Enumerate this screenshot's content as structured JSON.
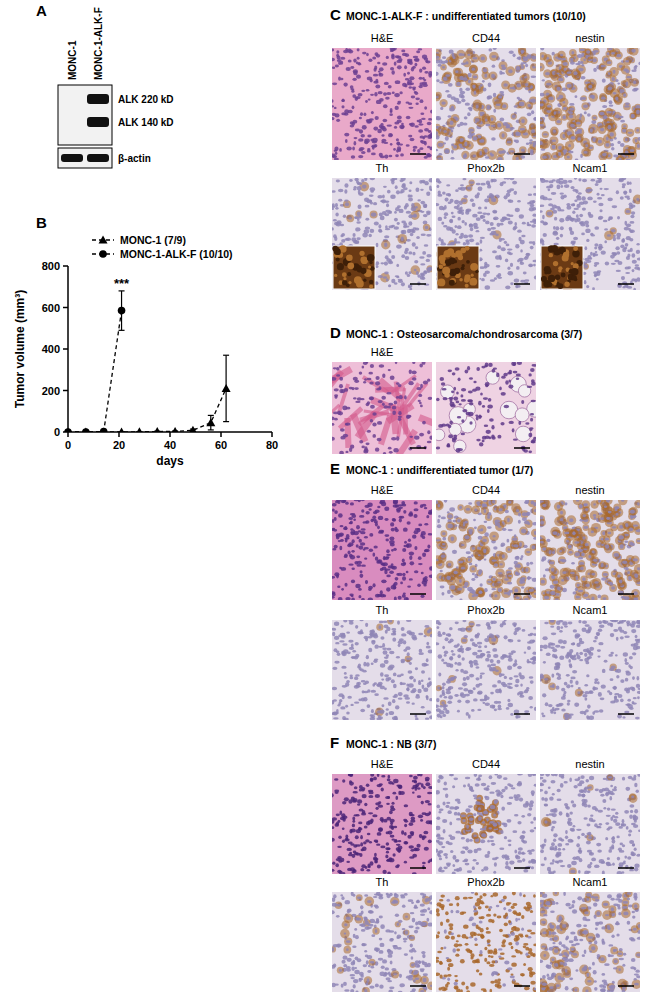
{
  "panels": {
    "A": {
      "label": "A",
      "lanes": [
        "MONC-1",
        "MONC-1-ALK-F"
      ],
      "bands": [
        {
          "label": "ALK 220 kD",
          "signal": [
            0,
            1
          ]
        },
        {
          "label": "ALK 140 kD",
          "signal": [
            0,
            1
          ]
        }
      ],
      "loading_control": {
        "label": "β-actin",
        "signal": [
          1,
          1
        ]
      }
    },
    "B": {
      "label": "B"
    },
    "C": {
      "label": "C",
      "title": "MONC-1-ALK-F : undifferentiated tumors (10/10)",
      "rows": [
        [
          "H&E",
          "CD44",
          "nestin"
        ],
        [
          "Th",
          "Phox2b",
          "Ncam1"
        ]
      ]
    },
    "D": {
      "label": "D",
      "title": "MONC-1 : Osteosarcoma/chondrosarcoma (3/7)",
      "rows": [
        [
          "H&E"
        ]
      ]
    },
    "E": {
      "label": "E",
      "title": "MONC-1 : undifferentiated tumor (1/7)",
      "rows": [
        [
          "H&E",
          "CD44",
          "nestin"
        ],
        [
          "Th",
          "Phox2b",
          "Ncam1"
        ]
      ]
    },
    "F": {
      "label": "F",
      "title": "MONC-1 : NB (3/7)",
      "rows": [
        [
          "H&E",
          "CD44",
          "nestin"
        ],
        [
          "Th",
          "Phox2b",
          "Ncam1"
        ]
      ]
    }
  },
  "chart_data": {
    "type": "line",
    "x_label": "days",
    "y_label": "Tumor volume (mm³)",
    "xlim": [
      0,
      80
    ],
    "xticks": [
      0,
      20,
      40,
      60,
      80
    ],
    "ylim": [
      0,
      800
    ],
    "yticks": [
      0,
      200,
      400,
      600,
      800
    ],
    "legend": "upper left",
    "grid": false,
    "series": [
      {
        "name": "MONC-1 (7/9)",
        "color": "#000000",
        "marker": "triangle",
        "line_style": "dashed",
        "x": [
          0,
          7,
          14,
          21,
          28,
          35,
          42,
          49,
          56,
          62
        ],
        "values": [
          0,
          0,
          0,
          0,
          1,
          2,
          3,
          8,
          45,
          210
        ],
        "errors": [
          0,
          0,
          0,
          0,
          1,
          2,
          2,
          6,
          35,
          160
        ]
      },
      {
        "name": "MONC-1-ALK-F (10/10)",
        "color": "#000000",
        "marker": "circle",
        "line_style": "dashed",
        "x": [
          0,
          7,
          14,
          21
        ],
        "values": [
          0,
          0,
          2,
          585
        ],
        "errors": [
          0,
          0,
          1,
          95
        ]
      }
    ],
    "annotations": [
      {
        "text": "***",
        "x": 21
      }
    ]
  }
}
